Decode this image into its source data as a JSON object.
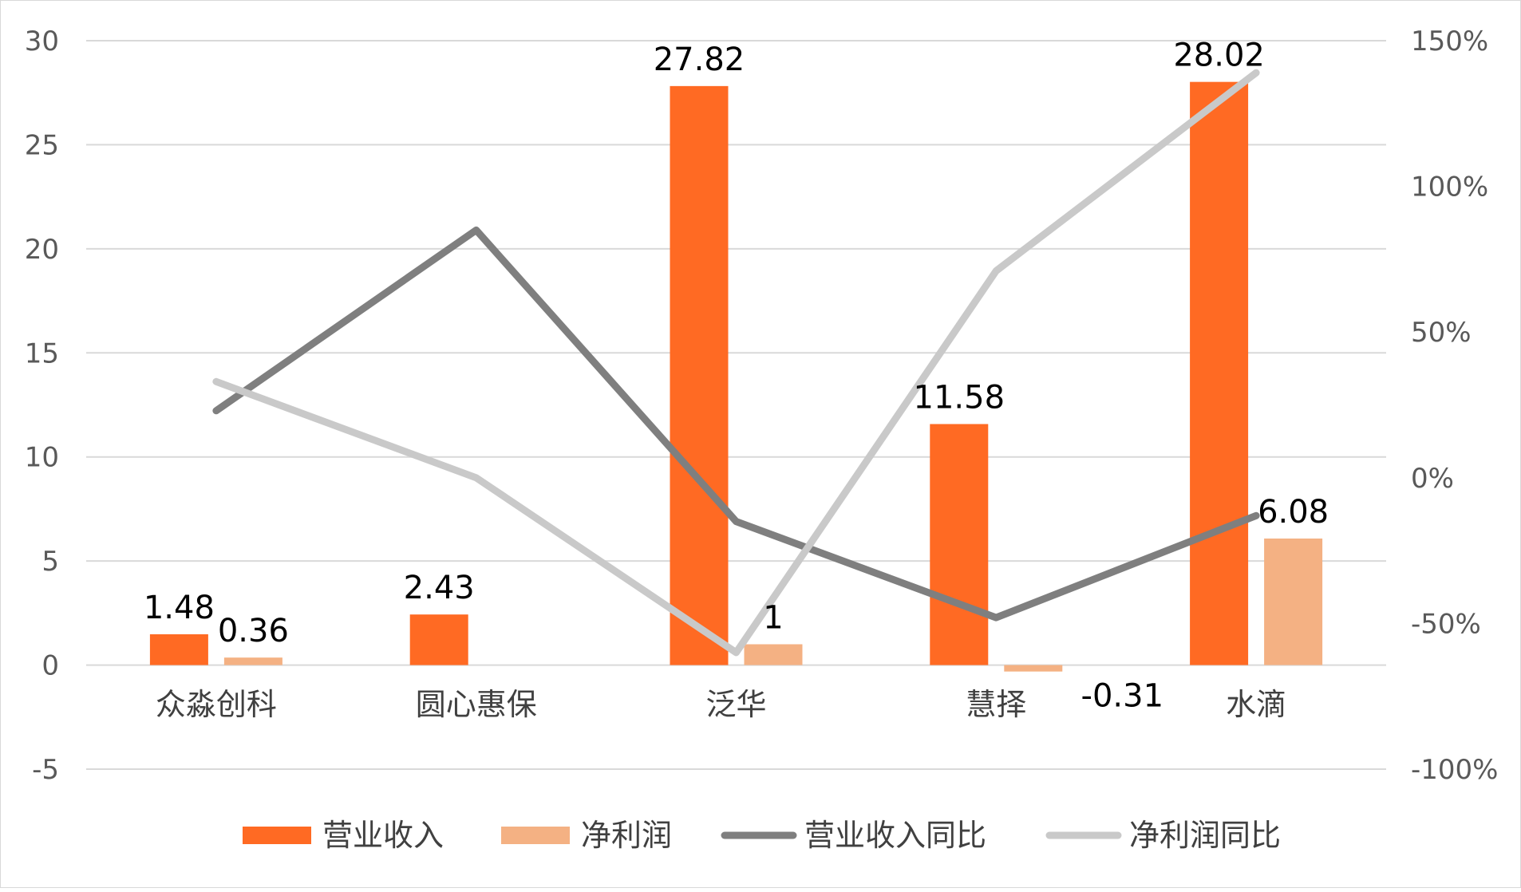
{
  "chart_data": {
    "type": "bar",
    "categories": [
      "众淼创科",
      "圆心惠保",
      "泛华",
      "慧择",
      "水滴"
    ],
    "ylim": [
      -5,
      30
    ],
    "yticks": [
      "30",
      "25",
      "20",
      "15",
      "10",
      "5",
      "0",
      "-5"
    ],
    "y2lim": [
      -1.0,
      1.5
    ],
    "y2ticks": [
      "150%",
      "100%",
      "50%",
      "0%",
      "-50%",
      "-100%"
    ],
    "grid": true,
    "legend_position": "bottom",
    "series": [
      {
        "name": "营业收入",
        "kind": "bar",
        "axis": "left",
        "color": "#FF6A23",
        "values": [
          1.48,
          2.43,
          27.82,
          11.58,
          28.02
        ],
        "labels": [
          "1.48",
          "2.43",
          "27.82",
          "11.58",
          "28.02"
        ]
      },
      {
        "name": "净利润",
        "kind": "bar",
        "axis": "left",
        "color": "#F4B183",
        "values": [
          0.36,
          null,
          1,
          -0.31,
          6.08
        ],
        "labels": [
          "0.36",
          "",
          "1",
          "-0.31",
          "6.08"
        ]
      },
      {
        "name": "营业收入同比",
        "kind": "line",
        "axis": "right",
        "color": "#7F7F7F",
        "values": [
          0.23,
          0.85,
          -0.15,
          -0.48,
          -0.13
        ]
      },
      {
        "name": "净利润同比",
        "kind": "line",
        "axis": "right",
        "color": "#C9C9C9",
        "values": [
          0.33,
          0.0,
          -0.6,
          0.71,
          1.39
        ]
      }
    ]
  }
}
